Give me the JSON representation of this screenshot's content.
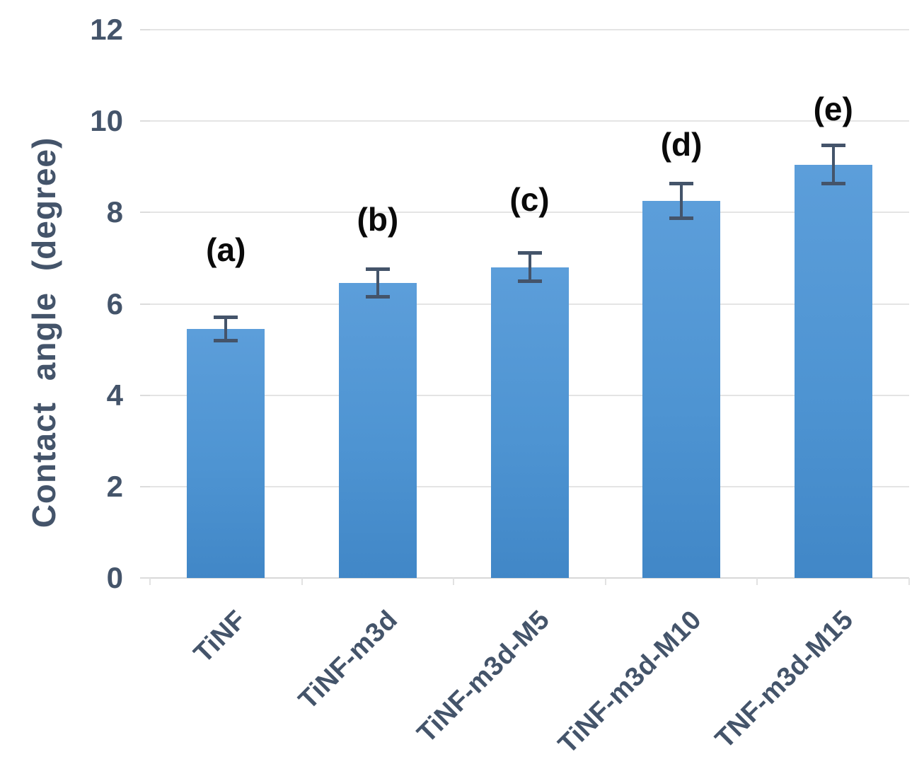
{
  "chart_data": {
    "type": "bar",
    "title": "",
    "xlabel": "",
    "ylabel": "Contact angle (degree)",
    "ylim": [
      0,
      12
    ],
    "yticks": [
      0,
      2,
      4,
      6,
      8,
      10,
      12
    ],
    "grid": "horizontal-light",
    "legend": "none",
    "categories": [
      "TiNF",
      "TiNF-m3d",
      "TiNF-m3d-M5",
      "TiNF-m3d-M10",
      "TNF-m3d-M15"
    ],
    "values": [
      5.45,
      6.45,
      6.8,
      8.25,
      9.05
    ],
    "error_bars": [
      0.3,
      0.34,
      0.35,
      0.42,
      0.45
    ],
    "bar_labels": [
      "(a)",
      "(b)",
      "(c)",
      "(d)",
      "(e)"
    ]
  },
  "style": {
    "bar_color_top": "#5c9eda",
    "bar_color_bottom": "#4187c7",
    "error_bar_color": "#44546a",
    "axis_text_color": "#44546a",
    "annotation_color": "#0a0a0a",
    "gridline_color": "#e4e4e4"
  }
}
